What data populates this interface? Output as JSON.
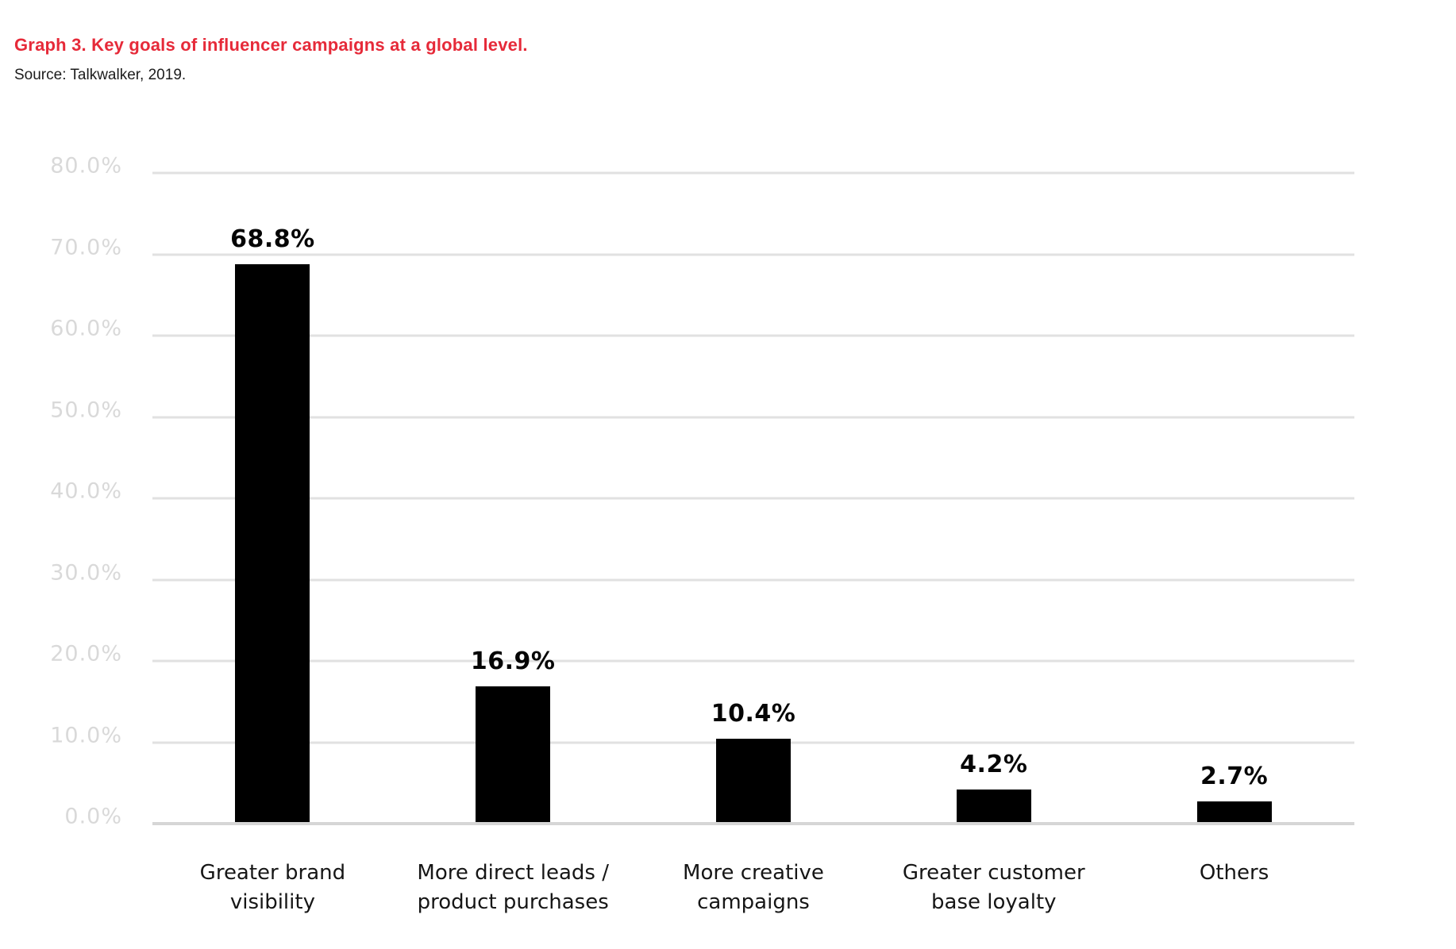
{
  "header": {
    "title": "Graph 3. Key goals of influencer campaigns at a global level.",
    "source": "Source: Talkwalker, 2019."
  },
  "colors": {
    "title_red": "#e62a39",
    "bar_black": "#000000",
    "grid_gray": "#e1e1e1",
    "baseline_gray": "#d6d6d6",
    "tick_gray": "#d9d9d9"
  },
  "chart_data": {
    "type": "bar",
    "title": "Graph 3. Key goals of influencer campaigns at a global level.",
    "source": "Source: Talkwalker, 2019.",
    "categories": [
      "Greater brand\nvisibility",
      "More direct leads /\nproduct purchases",
      "More creative\ncampaigns",
      "Greater customer\nbase loyalty",
      "Others"
    ],
    "values": [
      68.8,
      16.9,
      10.4,
      4.2,
      2.7
    ],
    "value_labels": [
      "68.8%",
      "16.9%",
      "10.4%",
      "4.2%",
      "2.7%"
    ],
    "xlabel": "",
    "ylabel": "",
    "ylim": [
      0,
      80
    ],
    "ytick_interval": 10,
    "ytick_labels": [
      "0.0%",
      "10.0%",
      "20.0%",
      "30.0%",
      "40.0%",
      "50.0%",
      "60.0%",
      "70.0%",
      "80.0%"
    ],
    "grid": true,
    "legend": false,
    "bar_color": "#000000"
  }
}
